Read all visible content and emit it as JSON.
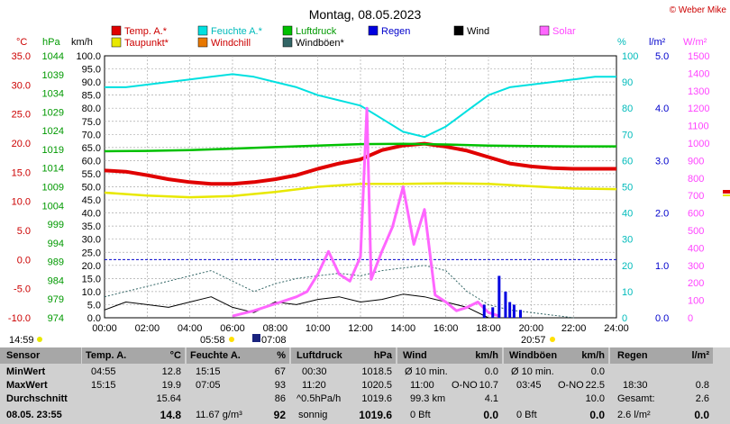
{
  "title": "Montag, 08.05.2023",
  "copyright": "© Weber Mike",
  "colors": {
    "temp": "#e00000",
    "humidity": "#00e0e0",
    "pressure": "#00c000",
    "rain": "#0000e0",
    "wind": "#000000",
    "solar": "#ff66ff",
    "dewpoint": "#e8e800",
    "windchill": "#e87800",
    "gust": "#336666",
    "grid": "#aaaaaa"
  },
  "legend": [
    {
      "label": "Temp. A.*",
      "color": "#e00000"
    },
    {
      "label": "Feuchte A.*",
      "color": "#00e0e0"
    },
    {
      "label": "Luftdruck",
      "color": "#00c000"
    },
    {
      "label": "Regen",
      "color": "#0000e0"
    },
    {
      "label": "Wind",
      "color": "#000000"
    },
    {
      "label": "Solar",
      "color": "#ff66ff"
    },
    {
      "label": "Taupunkt*",
      "color": "#e8e800"
    },
    {
      "label": "Windchill",
      "color": "#e87800"
    },
    {
      "label": "Windböen*",
      "color": "#336666"
    }
  ],
  "axes": {
    "temp": {
      "unit": "°C",
      "ticks": [
        "35.0",
        "30.0",
        "25.0",
        "20.0",
        "15.0",
        "10.0",
        "5.0",
        "0.0",
        "-5.0",
        "-10.0"
      ]
    },
    "pressure": {
      "unit": "hPa",
      "ticks": [
        "1044",
        "1039",
        "1034",
        "1029",
        "1024",
        "1019",
        "1014",
        "1009",
        "1004",
        "999",
        "994",
        "989",
        "984",
        "979",
        "974"
      ]
    },
    "wind": {
      "unit": "km/h",
      "ticks": [
        "100.0",
        "95.0",
        "90.0",
        "85.0",
        "80.0",
        "75.0",
        "70.0",
        "65.0",
        "60.0",
        "55.0",
        "50.0",
        "45.0",
        "40.0",
        "35.0",
        "30.0",
        "25.0",
        "20.0",
        "15.0",
        "10.0",
        "5.0",
        "0.0"
      ]
    },
    "humidity": {
      "unit": "%",
      "ticks": [
        "100",
        "90",
        "80",
        "70",
        "60",
        "50",
        "40",
        "30",
        "20",
        "10",
        "0"
      ]
    },
    "rain": {
      "unit": "l/m²",
      "ticks": [
        "5.0",
        "4.0",
        "3.0",
        "2.0",
        "1.0",
        "0.0"
      ]
    },
    "solar": {
      "unit": "W/m²",
      "ticks": [
        "1500",
        "1400",
        "1300",
        "1200",
        "1100",
        "1000",
        "900",
        "800",
        "700",
        "600",
        "500",
        "400",
        "300",
        "200",
        "100",
        "0"
      ]
    },
    "x_ticks": [
      "00:00",
      "02:00",
      "04:00",
      "06:00",
      "08:00",
      "10:00",
      "12:00",
      "14:00",
      "16:00",
      "18:00",
      "20:00",
      "22:00",
      "24:00"
    ]
  },
  "events": {
    "min_temp_time": "14:59",
    "sunrise": "05:58",
    "moon": "07:08",
    "sunset": "20:57"
  },
  "chart_data": {
    "type": "line",
    "title": "Montag, 08.05.2023",
    "x_unit": "hour",
    "xlim": [
      0,
      24
    ],
    "grid": true,
    "legend_position": "top",
    "series": [
      {
        "name": "Temp. A.*",
        "axis": "temp",
        "x": [
          0,
          1,
          2,
          3,
          4,
          5,
          6,
          7,
          8,
          9,
          10,
          11,
          12,
          13,
          14,
          15,
          16,
          17,
          18,
          19,
          20,
          21,
          22,
          23,
          24
        ],
        "y": [
          15.3,
          15.1,
          14.5,
          13.8,
          13.3,
          13.0,
          13.0,
          13.3,
          13.8,
          14.5,
          15.6,
          16.5,
          17.2,
          18.8,
          19.6,
          19.9,
          19.4,
          18.7,
          17.6,
          16.5,
          16.0,
          15.7,
          15.6,
          15.6,
          15.6
        ]
      },
      {
        "name": "Taupunkt*",
        "axis": "temp",
        "x": [
          0,
          2,
          4,
          6,
          8,
          10,
          12,
          14,
          16,
          18,
          20,
          22,
          24
        ],
        "y": [
          11.5,
          11.0,
          10.7,
          10.9,
          11.6,
          12.5,
          13.0,
          13.0,
          13.1,
          13.0,
          12.6,
          12.2,
          12.1
        ]
      },
      {
        "name": "Feuchte A.*",
        "axis": "humidity",
        "x": [
          0,
          1,
          2,
          3,
          4,
          5,
          6,
          7,
          8,
          9,
          10,
          11,
          12,
          13,
          14,
          15,
          16,
          17,
          18,
          19,
          20,
          21,
          22,
          23,
          24
        ],
        "y": [
          88,
          88,
          89,
          90,
          91,
          92,
          93,
          92,
          90,
          88,
          85,
          83,
          81,
          76,
          71,
          69,
          73,
          79,
          85,
          88,
          89,
          90,
          91,
          92,
          92
        ]
      },
      {
        "name": "Luftdruck",
        "axis": "pressure",
        "x": [
          0,
          2,
          4,
          6,
          8,
          10,
          12,
          14,
          16,
          18,
          20,
          22,
          24
        ],
        "y": [
          1018.5,
          1018.6,
          1018.8,
          1019.2,
          1019.6,
          1020.0,
          1020.4,
          1020.5,
          1020.3,
          1020.0,
          1019.9,
          1019.8,
          1019.8
        ]
      },
      {
        "name": "Wind",
        "axis": "wind",
        "x": [
          0,
          1,
          2,
          3,
          4,
          5,
          6,
          7,
          8,
          9,
          10,
          11,
          12,
          13,
          14,
          15,
          16,
          17,
          18
        ],
        "y": [
          3,
          6,
          5,
          4,
          6,
          8,
          4,
          2,
          6,
          5,
          7,
          8,
          6,
          7,
          9,
          8,
          6,
          4,
          0
        ]
      },
      {
        "name": "Windböen*",
        "axis": "wind",
        "x": [
          0,
          1,
          2,
          3,
          4,
          5,
          6,
          7,
          8,
          9,
          10,
          11,
          12,
          13,
          14,
          15,
          16,
          17,
          18,
          19,
          20,
          21,
          22
        ],
        "y": [
          8,
          10,
          12,
          14,
          16,
          18,
          14,
          10,
          13,
          15,
          16,
          17,
          16,
          18,
          19,
          20,
          18,
          10,
          5,
          3,
          2,
          1,
          0
        ]
      },
      {
        "name": "Solar",
        "axis": "solar",
        "x": [
          6,
          7,
          8,
          9,
          9.5,
          10,
          10.5,
          11,
          11.5,
          12,
          12.3,
          12.5,
          13,
          13.5,
          14,
          14.5,
          15,
          15.5,
          16,
          16.5,
          17,
          17.5,
          18,
          18.5
        ],
        "y": [
          10,
          40,
          80,
          120,
          150,
          250,
          380,
          250,
          210,
          350,
          1200,
          220,
          380,
          520,
          750,
          420,
          620,
          130,
          90,
          40,
          60,
          90,
          30,
          10
        ]
      },
      {
        "name": "Regen",
        "axis": "rain",
        "x": [
          17.8,
          18.2,
          18.5,
          18.8,
          19.0,
          19.2,
          19.5
        ],
        "y": [
          0.25,
          0.2,
          0.8,
          0.5,
          0.3,
          0.25,
          0.15
        ]
      }
    ]
  },
  "stats": {
    "sensor": {
      "header": "Sensor",
      "min": "MinWert",
      "max": "MaxWert",
      "avg": "Durchschnitt",
      "now": "08.05. 23:55"
    },
    "temp": {
      "header": "Temp. A.",
      "unit": "°C",
      "min_t": "04:55",
      "min_v": "12.8",
      "max_t": "15:15",
      "max_v": "19.9",
      "avg": "15.64",
      "now": "14.8"
    },
    "hum": {
      "header": "Feuchte A.",
      "unit": "%",
      "min_t": "15:15",
      "min_v": "67",
      "max_t": "07:05",
      "max_v": "93",
      "avg": "86",
      "now_extra": "11.67 g/m³",
      "now": "92"
    },
    "pres": {
      "header": "Luftdruck",
      "unit": "hPa",
      "min_t": "00:30",
      "min_v": "1018.5",
      "max_t": "11:20",
      "max_v": "1020.5",
      "trend": "^0.5hPa/h",
      "avg": "1019.6",
      "now_text": "sonnig",
      "now": "1019.6"
    },
    "wind": {
      "header": "Wind",
      "unit": "km/h",
      "r1_l": "Ø 10 min.",
      "r1_v": "0.0",
      "r2_l": "11:00",
      "r2_d": "O-NO",
      "r2_v": "10.7",
      "r3_l": "99.3 km",
      "r3_v": "4.1",
      "r4_l": "0 Bft",
      "r4_v": "0.0"
    },
    "gust": {
      "header": "Windböen",
      "unit": "km/h",
      "r1_l": "Ø 10 min.",
      "r1_v": "0.0",
      "r2_l": "03:45",
      "r2_d": "O-NO",
      "r2_v": "22.5",
      "r3_v": "10.0",
      "r4_l": "0 Bft",
      "r4_v": "0.0"
    },
    "rain": {
      "header": "Regen",
      "unit": "l/m²",
      "r2_l": "18:30",
      "r2_v": "0.8",
      "r3_l": "Gesamt:",
      "r3_v": "2.6",
      "r4_l": "2.6 l/m²",
      "r4_v": "0.0"
    }
  }
}
